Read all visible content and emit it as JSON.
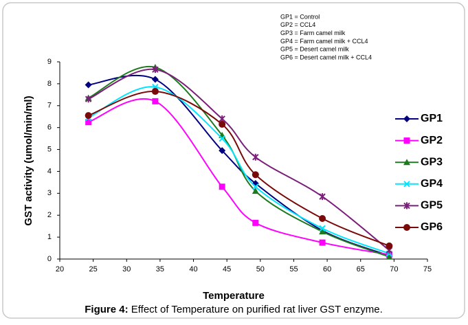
{
  "chart_data": {
    "type": "line",
    "notes": [
      "GP1 = Control",
      "GP2 = CCL4",
      "GP3 = Farm camel milk",
      "GP4 = Farm camel milk + CCL4",
      "GP5 = Desert camel milk",
      "GP6 = Desert camel milk + CCL4"
    ],
    "y_label": "GST activity  (umol/min/ml)",
    "x_label": "Temperature",
    "caption_label": "Figure 4:",
    "caption_text": " Effect of Temperature on purified rat liver GST enzyme.",
    "x": [
      25,
      35,
      45,
      50,
      60,
      70
    ],
    "xlim": [
      20,
      75
    ],
    "xticks": [
      20,
      25,
      30,
      35,
      40,
      45,
      50,
      55,
      60,
      65,
      70,
      75
    ],
    "ylim": [
      0,
      9
    ],
    "yticks": [
      0,
      1,
      2,
      3,
      4,
      5,
      6,
      7,
      8,
      9
    ],
    "smooth": true,
    "series": [
      {
        "name": "GP1",
        "color": "#000080",
        "marker": "diamond",
        "values": [
          7.95,
          8.2,
          4.95,
          3.45,
          1.3,
          0.15
        ]
      },
      {
        "name": "GP2",
        "color": "#ff00ff",
        "marker": "square",
        "values": [
          6.25,
          7.2,
          3.3,
          1.65,
          0.75,
          0.2
        ]
      },
      {
        "name": "GP3",
        "color": "#1f7a1f",
        "marker": "triangle",
        "values": [
          7.35,
          8.75,
          5.65,
          3.1,
          1.25,
          0.1
        ]
      },
      {
        "name": "GP4",
        "color": "#00e5ff",
        "marker": "x",
        "values": [
          6.45,
          7.85,
          5.5,
          3.3,
          1.4,
          0.25
        ]
      },
      {
        "name": "GP5",
        "color": "#7a1f7a",
        "marker": "star",
        "values": [
          7.3,
          8.65,
          6.4,
          4.65,
          2.85,
          0.4
        ]
      },
      {
        "name": "GP6",
        "color": "#7a0a0a",
        "marker": "circle",
        "values": [
          6.55,
          7.65,
          6.15,
          3.85,
          1.85,
          0.6
        ]
      }
    ]
  }
}
